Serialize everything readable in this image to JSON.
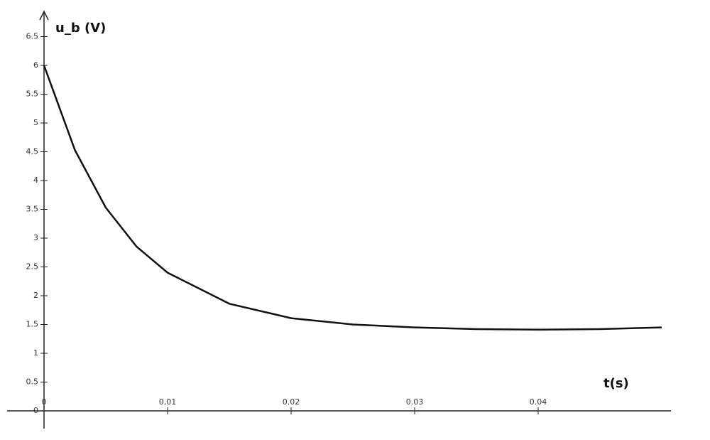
{
  "chart_data": {
    "type": "line",
    "y_label": "u_b (V)",
    "x_label": "t(s)",
    "x": [
      0,
      0.0025,
      0.005,
      0.0075,
      0.01,
      0.015,
      0.02,
      0.025,
      0.03,
      0.035,
      0.04,
      0.045,
      0.05
    ],
    "series": [
      {
        "color": "#111111",
        "values": [
          6,
          4.53,
          3.53,
          2.85,
          2.4,
          1.86,
          1.61,
          1.5,
          1.45,
          1.42,
          1.41,
          1.42,
          1.45
        ]
      }
    ],
    "xlim": [
      0,
      0.05
    ],
    "ylim": [
      0,
      6.5
    ],
    "xticks": [
      0,
      {
        "value": 0.01,
        "label": "0,01"
      },
      0.02,
      0.03,
      0.04
    ],
    "yticks": [
      0,
      0.5,
      1,
      1.5,
      2,
      2.5,
      3,
      3.5,
      4,
      4.5,
      5,
      5.5,
      6,
      6.5
    ]
  }
}
